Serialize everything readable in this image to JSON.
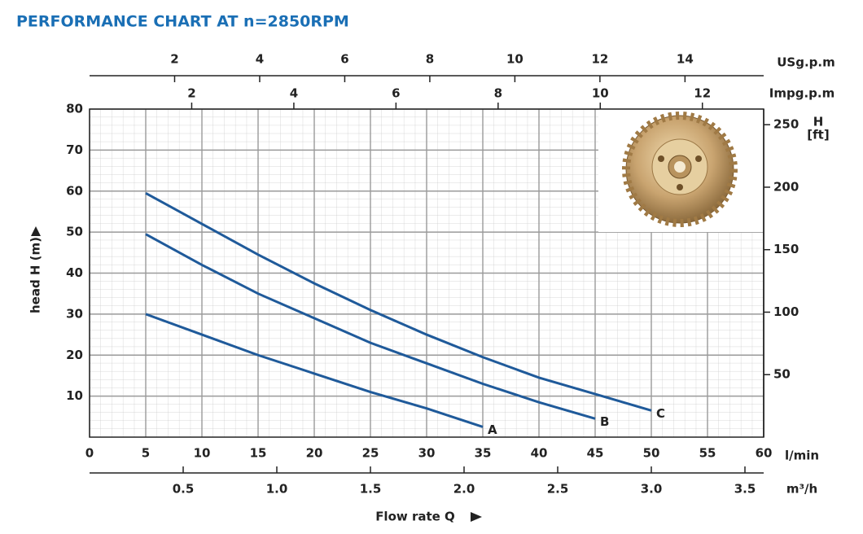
{
  "chart_data": {
    "type": "line",
    "title": "PERFORMANCE CHART AT n=2850RPM",
    "xlabel": "Flow rate Q",
    "xunit": "l/min",
    "ylabel": "head H (m)",
    "xlim": [
      0,
      60
    ],
    "xticks": [
      0,
      5,
      10,
      15,
      20,
      25,
      30,
      35,
      40,
      45,
      50,
      55,
      60
    ],
    "ylim": [
      0,
      80
    ],
    "yticks": [
      10,
      20,
      30,
      40,
      50,
      60,
      70,
      80
    ],
    "y2label": "H",
    "y2unit": "[ft]",
    "y2lim": [
      0,
      262.5
    ],
    "y2ticks": [
      50,
      100,
      150,
      200,
      250
    ],
    "grid": true,
    "secondary_x_axes": [
      {
        "label": "m³/h",
        "xlim": [
          0,
          3.6
        ],
        "xticks": [
          {
            "value": 0.5,
            "label": "0.5"
          },
          {
            "value": 1,
            "label": "1.0"
          },
          {
            "value": 1.5,
            "label": "1.5"
          },
          {
            "value": 2,
            "label": "2.0"
          },
          {
            "value": 2.5,
            "label": "2.5"
          },
          {
            "value": 3,
            "label": "3.0"
          },
          {
            "value": 3.5,
            "label": "3.5"
          }
        ]
      },
      {
        "label": "Impg.p.m",
        "xlim": [
          0,
          13.2
        ],
        "xticks": [
          2,
          4,
          6,
          8,
          10,
          12
        ]
      },
      {
        "label": "USg.p.m",
        "xlim": [
          0,
          15.85
        ],
        "xticks": [
          2,
          4,
          6,
          8,
          10,
          12,
          14
        ]
      }
    ],
    "series": [
      {
        "name": "A",
        "color": "#1f5a9a",
        "x": [
          5,
          10,
          15,
          20,
          25,
          30,
          35
        ],
        "values": [
          30,
          25,
          20,
          15.5,
          11,
          7,
          2.5
        ]
      },
      {
        "name": "B",
        "color": "#1f5a9a",
        "x": [
          5,
          10,
          15,
          20,
          25,
          30,
          35,
          40,
          45
        ],
        "values": [
          49.5,
          42,
          35,
          29,
          23,
          18,
          13,
          8.5,
          4.5
        ]
      },
      {
        "name": "C",
        "color": "#1f5a9a",
        "x": [
          5,
          10,
          15,
          20,
          25,
          30,
          35,
          40,
          45,
          50
        ],
        "values": [
          59.5,
          52,
          44.5,
          37.5,
          31,
          25,
          19.5,
          14.5,
          10.5,
          6.5
        ]
      }
    ]
  }
}
